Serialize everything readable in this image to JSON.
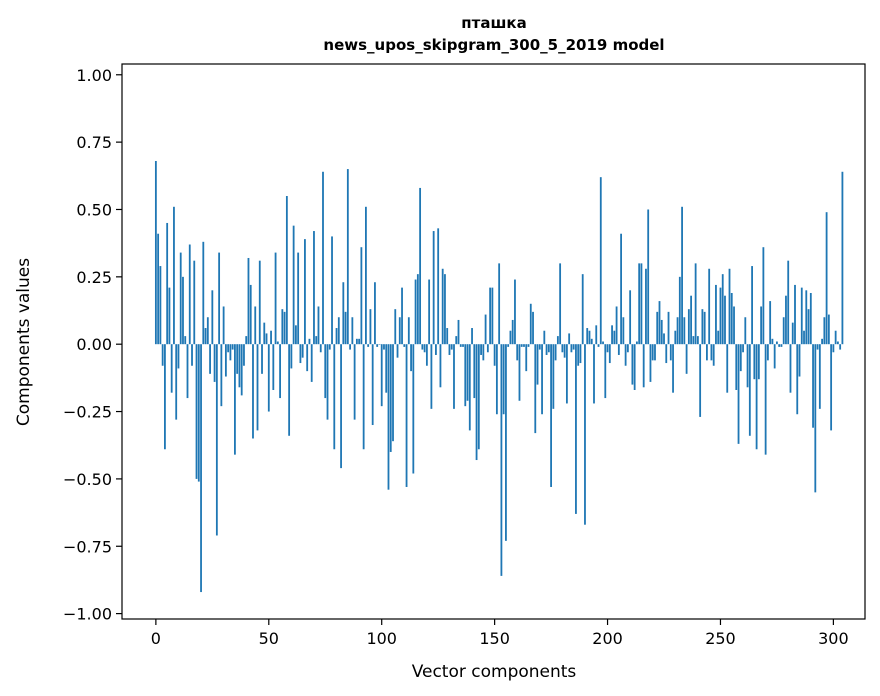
{
  "chart_data": {
    "type": "bar",
    "title": "пташка",
    "subtitle": "news_upos_skipgram_300_5_2019 model",
    "xlabel": "Vector components",
    "ylabel": "Components values",
    "xlim": [
      -15,
      314
    ],
    "ylim": [
      -1.02,
      1.04
    ],
    "xticks": [
      0,
      50,
      100,
      150,
      200,
      250,
      300
    ],
    "xtick_labels": [
      "0",
      "50",
      "100",
      "150",
      "200",
      "250",
      "300"
    ],
    "yticks": [
      1.0,
      0.75,
      0.5,
      0.25,
      0.0,
      -0.25,
      -0.5,
      -0.75,
      -1.0
    ],
    "ytick_labels": [
      "1.00",
      "0.75",
      "0.50",
      "0.25",
      "0.00",
      "−0.25",
      "−0.50",
      "−0.75",
      "−1.00"
    ],
    "grid": false,
    "bar_color": "#1f77b4",
    "values": [
      0.68,
      0.41,
      0.29,
      -0.08,
      -0.39,
      0.45,
      0.21,
      -0.18,
      0.51,
      -0.28,
      -0.09,
      0.34,
      0.25,
      0.03,
      -0.2,
      0.37,
      -0.08,
      0.31,
      -0.5,
      -0.51,
      -0.92,
      0.38,
      0.06,
      0.1,
      -0.11,
      0.2,
      -0.14,
      -0.71,
      0.34,
      -0.23,
      0.14,
      -0.12,
      -0.03,
      -0.06,
      -0.02,
      -0.41,
      -0.11,
      -0.16,
      -0.19,
      -0.08,
      0.03,
      0.32,
      0.22,
      -0.35,
      0.14,
      -0.32,
      0.31,
      -0.11,
      0.08,
      0.04,
      -0.25,
      0.05,
      -0.17,
      0.34,
      0.01,
      -0.2,
      0.13,
      0.12,
      0.55,
      -0.34,
      -0.09,
      0.44,
      0.07,
      0.34,
      -0.07,
      -0.05,
      0.39,
      -0.1,
      0.02,
      -0.14,
      0.42,
      0.03,
      0.14,
      -0.03,
      0.64,
      -0.2,
      -0.28,
      -0.02,
      0.4,
      -0.39,
      0.06,
      0.1,
      -0.46,
      0.23,
      0.12,
      0.65,
      -0.02,
      0.1,
      -0.28,
      0.02,
      0.02,
      0.36,
      -0.39,
      0.51,
      -0.01,
      0.13,
      -0.3,
      0.23,
      -0.01,
      0.0,
      -0.23,
      -0.02,
      -0.18,
      -0.54,
      -0.4,
      -0.36,
      0.13,
      -0.05,
      0.1,
      0.21,
      -0.01,
      -0.53,
      0.1,
      -0.1,
      -0.48,
      0.24,
      0.26,
      0.58,
      -0.02,
      -0.03,
      -0.08,
      0.24,
      -0.24,
      0.42,
      -0.04,
      0.43,
      -0.16,
      0.28,
      0.26,
      0.06,
      -0.04,
      -0.02,
      -0.24,
      0.03,
      0.09,
      -0.01,
      -0.01,
      -0.23,
      -0.21,
      -0.32,
      0.06,
      -0.2,
      -0.43,
      -0.39,
      -0.04,
      -0.06,
      0.11,
      -0.03,
      0.21,
      0.21,
      -0.08,
      -0.26,
      0.3,
      -0.86,
      -0.26,
      -0.73,
      -0.01,
      0.05,
      0.09,
      0.24,
      -0.06,
      -0.21,
      -0.01,
      -0.01,
      -0.1,
      -0.01,
      0.15,
      0.12,
      -0.33,
      -0.15,
      -0.02,
      -0.26,
      0.05,
      -0.04,
      -0.03,
      -0.53,
      -0.24,
      -0.06,
      0.03,
      0.3,
      -0.03,
      -0.05,
      -0.22,
      0.04,
      -0.03,
      -0.02,
      -0.63,
      -0.08,
      -0.07,
      0.26,
      -0.67,
      0.06,
      0.05,
      0.02,
      -0.22,
      0.07,
      -0.01,
      0.62,
      0.01,
      -0.2,
      -0.03,
      -0.07,
      0.07,
      0.05,
      0.14,
      -0.04,
      0.41,
      0.1,
      -0.08,
      -0.03,
      0.2,
      -0.15,
      -0.17,
      0.01,
      0.3,
      0.3,
      -0.16,
      0.28,
      0.5,
      -0.14,
      -0.06,
      -0.06,
      0.12,
      0.16,
      0.09,
      0.04,
      -0.07,
      0.12,
      -0.06,
      -0.18,
      0.05,
      0.1,
      0.25,
      0.51,
      0.1,
      -0.11,
      0.13,
      0.18,
      0.03,
      0.3,
      0.03,
      -0.27,
      0.13,
      0.12,
      -0.06,
      0.28,
      -0.06,
      -0.08,
      0.22,
      0.05,
      0.21,
      0.26,
      0.18,
      -0.18,
      0.28,
      0.19,
      0.14,
      -0.17,
      -0.37,
      -0.1,
      -0.03,
      0.1,
      -0.16,
      -0.34,
      0.29,
      -0.13,
      -0.39,
      -0.13,
      0.14,
      0.36,
      -0.41,
      -0.06,
      0.16,
      0.02,
      -0.09,
      0.01,
      -0.01,
      -0.01,
      0.1,
      0.18,
      0.31,
      -0.18,
      0.08,
      0.22,
      -0.26,
      -0.12,
      0.21,
      0.05,
      0.2,
      0.13,
      0.19,
      -0.31,
      -0.55,
      -0.02,
      -0.24,
      0.02,
      0.1,
      0.49,
      0.11,
      -0.32,
      -0.03,
      0.05,
      0.01,
      -0.02,
      0.64
    ]
  }
}
